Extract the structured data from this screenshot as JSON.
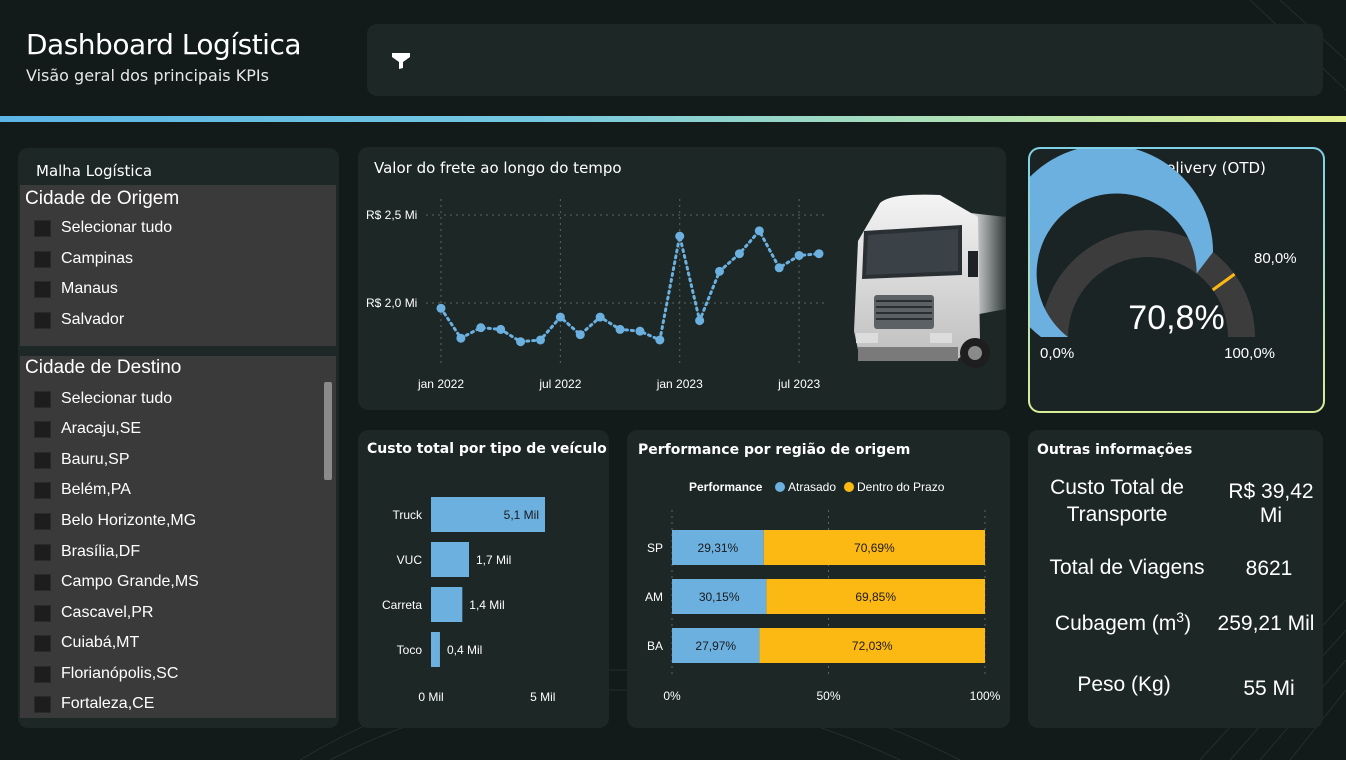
{
  "header": {
    "title": "Dashboard Logística",
    "subtitle": "Visão geral dos principais KPIs"
  },
  "colors": {
    "background": "#121b1a",
    "panel": "#1c2726",
    "blue": "#6cb0e0",
    "yellow": "#fdb913",
    "gauge_track": "#3c3c3c",
    "accent_gradient": [
      "#5bb6e6",
      "#e6f18f"
    ]
  },
  "icons": {
    "filter": "filter-funnel-icon",
    "truck": "truck-image"
  },
  "slicer": {
    "title": "Malha Logística",
    "origin": {
      "heading": "Cidade de Origem",
      "items": [
        "Selecionar tudo",
        "Campinas",
        "Manaus",
        "Salvador"
      ]
    },
    "destination": {
      "heading": "Cidade de Destino",
      "items": [
        "Selecionar tudo",
        "Aracaju,SE",
        "Bauru,SP",
        "Belém,PA",
        "Belo Horizonte,MG",
        "Brasília,DF",
        "Campo Grande,MS",
        "Cascavel,PR",
        "Cuiabá,MT",
        "Florianópolis,SC",
        "Fortaleza,CE"
      ]
    }
  },
  "freight": {
    "title": "Valor do frete ao longo do tempo"
  },
  "otd": {
    "title": "On Time Delivery (OTD)",
    "value_label": "70,8%",
    "value": 70.8,
    "target": 80.0,
    "target_label": "80,0%",
    "min_label": "0,0%",
    "max_label": "100,0%"
  },
  "vehicle_cost": {
    "title": "Custo total por tipo de veículo"
  },
  "performance": {
    "title": "Performance por região de origem"
  },
  "other_info": {
    "title": "Outras informações",
    "items": [
      {
        "label": "Custo Total de Transporte",
        "value": "R$ 39,42 Mi"
      },
      {
        "label": "Total de Viagens",
        "value": "8621"
      },
      {
        "label": "Cubagem (m",
        "label_sup": "3",
        "label_end": ")",
        "value": "259,21 Mil"
      },
      {
        "label": "Peso (Kg)",
        "value": "55 Mi"
      }
    ]
  },
  "chart_data": [
    {
      "type": "line",
      "title": "Valor do frete ao longo do tempo",
      "x": [
        "2022-01",
        "2022-02",
        "2022-03",
        "2022-04",
        "2022-05",
        "2022-06",
        "2022-07",
        "2022-08",
        "2022-09",
        "2022-10",
        "2022-11",
        "2022-12",
        "2023-01",
        "2023-02",
        "2023-03",
        "2023-04",
        "2023-05",
        "2023-06",
        "2023-07",
        "2023-08"
      ],
      "y": [
        1.97,
        1.8,
        1.86,
        1.85,
        1.78,
        1.79,
        1.92,
        1.82,
        1.92,
        1.85,
        1.84,
        1.79,
        2.38,
        1.9,
        2.18,
        2.28,
        2.41,
        2.2,
        2.27,
        2.28
      ],
      "tick_labels_x": [
        "jan 2022",
        "jul 2022",
        "jan 2023",
        "jul 2023"
      ],
      "tick_labels_y": [
        "R$ 2,0 Mi",
        "R$ 2,5 Mi"
      ],
      "ylim": [
        1.65,
        2.6
      ],
      "ylabel": "",
      "xlabel": "",
      "grid": true
    },
    {
      "type": "bar",
      "orientation": "horizontal",
      "title": "Custo total por tipo de veículo",
      "categories": [
        "Truck",
        "VUC",
        "Carreta",
        "Toco"
      ],
      "values": [
        5.1,
        1.7,
        1.4,
        0.4
      ],
      "data_labels": [
        "5,1 Mil",
        "1,7 Mil",
        "1,4 Mil",
        "0,4 Mil"
      ],
      "tick_labels_x": [
        "0 Mil",
        "5 Mil"
      ],
      "xlim": [
        0,
        5.1
      ],
      "grid": false
    },
    {
      "type": "bar",
      "orientation": "horizontal",
      "stacked": "percent",
      "title": "Performance por região de origem",
      "legend_title": "Performance",
      "legend_position": "top",
      "categories": [
        "SP",
        "AM",
        "BA"
      ],
      "series": [
        {
          "name": "Atrasado",
          "color": "#6cb0e0",
          "values": [
            29.31,
            30.15,
            27.97
          ],
          "labels": [
            "29,31%",
            "30,15%",
            "27,97%"
          ]
        },
        {
          "name": "Dentro do Prazo",
          "color": "#fdb913",
          "values": [
            70.69,
            69.85,
            72.03
          ],
          "labels": [
            "70,69%",
            "69,85%",
            "72,03%"
          ]
        }
      ],
      "tick_labels_x": [
        "0%",
        "50%",
        "100%"
      ],
      "xlim": [
        0,
        100
      ],
      "grid": true
    }
  ]
}
